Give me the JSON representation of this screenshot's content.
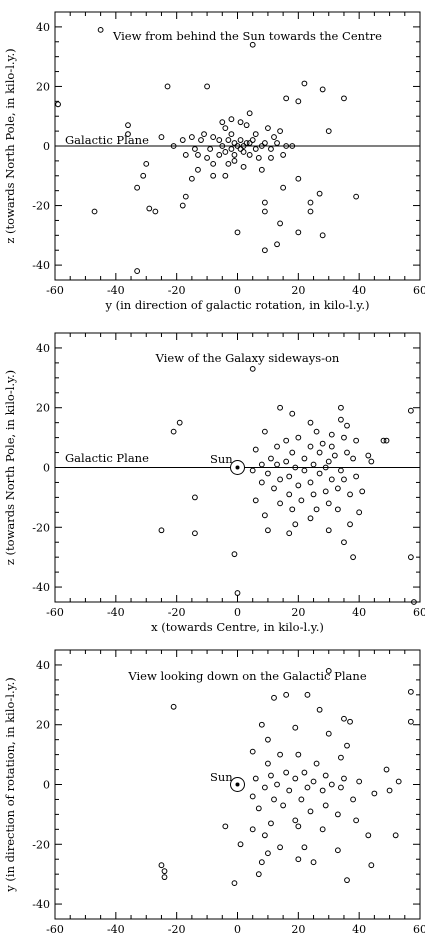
{
  "chart_data": [
    {
      "type": "scatter",
      "title": "View from behind the Sun towards the Centre",
      "xlabel": "y (in direction of galactic rotation, in kilo-l.y.)",
      "ylabel": "z (towards North Pole, in kilo-l.y.)",
      "xlim": [
        -60,
        60
      ],
      "ylim": [
        -45,
        45
      ],
      "xticks": [
        "-60",
        "-40",
        "-20",
        "0",
        "20",
        "40",
        "60"
      ],
      "yticks": [
        "-40",
        "-20",
        "0",
        "20",
        "40"
      ],
      "plane_label": "Galactic Plane",
      "points": [
        [
          -45,
          39
        ],
        [
          5,
          34
        ],
        [
          -59,
          14
        ],
        [
          -23,
          20
        ],
        [
          -10,
          20
        ],
        [
          22,
          21
        ],
        [
          28,
          19
        ],
        [
          16,
          16
        ],
        [
          20,
          15
        ],
        [
          35,
          16
        ],
        [
          -36,
          7
        ],
        [
          -36,
          4
        ],
        [
          30,
          5
        ],
        [
          4,
          11
        ],
        [
          -5,
          8
        ],
        [
          -2,
          9
        ],
        [
          1,
          8
        ],
        [
          3,
          7
        ],
        [
          10,
          6
        ],
        [
          -4,
          6
        ],
        [
          14,
          5
        ],
        [
          -11,
          4
        ],
        [
          -15,
          3
        ],
        [
          -8,
          3
        ],
        [
          -2,
          4
        ],
        [
          6,
          4
        ],
        [
          12,
          3
        ],
        [
          -25,
          3
        ],
        [
          -18,
          2
        ],
        [
          -12,
          2
        ],
        [
          -6,
          2
        ],
        [
          -3,
          2
        ],
        [
          -1,
          1
        ],
        [
          1,
          2
        ],
        [
          3,
          1
        ],
        [
          5,
          2
        ],
        [
          9,
          1
        ],
        [
          13,
          1
        ],
        [
          16,
          0
        ],
        [
          -21,
          0
        ],
        [
          -14,
          -1
        ],
        [
          -9,
          -1
        ],
        [
          -5,
          0
        ],
        [
          -2,
          -1
        ],
        [
          0,
          0
        ],
        [
          1,
          -1
        ],
        [
          2,
          0
        ],
        [
          4,
          1
        ],
        [
          6,
          -1
        ],
        [
          8,
          0
        ],
        [
          11,
          -1
        ],
        [
          18,
          0
        ],
        [
          -17,
          -3
        ],
        [
          -13,
          -3
        ],
        [
          -10,
          -4
        ],
        [
          -6,
          -3
        ],
        [
          -4,
          -2
        ],
        [
          -1,
          -3
        ],
        [
          2,
          -2
        ],
        [
          4,
          -3
        ],
        [
          7,
          -4
        ],
        [
          11,
          -4
        ],
        [
          15,
          -3
        ],
        [
          -30,
          -6
        ],
        [
          -8,
          -6
        ],
        [
          -3,
          -6
        ],
        [
          -1,
          -5
        ],
        [
          2,
          -7
        ],
        [
          8,
          -8
        ],
        [
          -13,
          -8
        ],
        [
          -8,
          -10
        ],
        [
          -4,
          -10
        ],
        [
          -31,
          -10
        ],
        [
          -15,
          -11
        ],
        [
          -17,
          -17
        ],
        [
          -33,
          -14
        ],
        [
          20,
          -11
        ],
        [
          15,
          -14
        ],
        [
          39,
          -17
        ],
        [
          27,
          -16
        ],
        [
          24,
          -19
        ],
        [
          -29,
          -21
        ],
        [
          -18,
          -20
        ],
        [
          -47,
          -22
        ],
        [
          -27,
          -22
        ],
        [
          9,
          -19
        ],
        [
          9,
          -22
        ],
        [
          24,
          -22
        ],
        [
          14,
          -26
        ],
        [
          0,
          -29
        ],
        [
          20,
          -29
        ],
        [
          28,
          -30
        ],
        [
          13,
          -33
        ],
        [
          9,
          -35
        ],
        [
          -33,
          -42
        ]
      ]
    },
    {
      "type": "scatter",
      "title": "View of the Galaxy sideways-on",
      "xlabel": "x (towards Centre, in kilo-l.y.)",
      "ylabel": "z (towards North Pole, in kilo-l.y.)",
      "xlim": [
        -60,
        60
      ],
      "ylim": [
        -45,
        45
      ],
      "xticks": [
        "-60",
        "-40",
        "-20",
        "0",
        "20",
        "40",
        "60"
      ],
      "yticks": [
        "-40",
        "-20",
        "0",
        "20",
        "40"
      ],
      "plane_label": "Galactic Plane",
      "sun_label": "Sun",
      "points": [
        [
          5,
          33
        ],
        [
          -19,
          15
        ],
        [
          -21,
          12
        ],
        [
          18,
          18
        ],
        [
          14,
          20
        ],
        [
          34,
          20
        ],
        [
          57,
          19
        ],
        [
          34,
          16
        ],
        [
          24,
          15
        ],
        [
          36,
          14
        ],
        [
          9,
          12
        ],
        [
          26,
          12
        ],
        [
          31,
          11
        ],
        [
          20,
          10
        ],
        [
          35,
          10
        ],
        [
          39,
          9
        ],
        [
          48,
          9
        ],
        [
          49,
          9
        ],
        [
          16,
          9
        ],
        [
          28,
          8
        ],
        [
          24,
          7
        ],
        [
          13,
          7
        ],
        [
          31,
          7
        ],
        [
          6,
          6
        ],
        [
          18,
          5
        ],
        [
          27,
          5
        ],
        [
          36,
          5
        ],
        [
          43,
          4
        ],
        [
          32,
          4
        ],
        [
          22,
          3
        ],
        [
          11,
          3
        ],
        [
          38,
          3
        ],
        [
          44,
          2
        ],
        [
          16,
          2
        ],
        [
          30,
          2
        ],
        [
          25,
          1
        ],
        [
          8,
          1
        ],
        [
          13,
          1
        ],
        [
          19,
          0
        ],
        [
          29,
          0
        ],
        [
          34,
          -1
        ],
        [
          5,
          -1
        ],
        [
          22,
          -1
        ],
        [
          10,
          -2
        ],
        [
          27,
          -2
        ],
        [
          39,
          -3
        ],
        [
          17,
          -3
        ],
        [
          31,
          -4
        ],
        [
          14,
          -4
        ],
        [
          35,
          -4
        ],
        [
          24,
          -5
        ],
        [
          8,
          -5
        ],
        [
          20,
          -6
        ],
        [
          33,
          -7
        ],
        [
          12,
          -7
        ],
        [
          29,
          -8
        ],
        [
          41,
          -8
        ],
        [
          17,
          -9
        ],
        [
          25,
          -9
        ],
        [
          37,
          -9
        ],
        [
          -14,
          -10
        ],
        [
          6,
          -11
        ],
        [
          21,
          -11
        ],
        [
          30,
          -12
        ],
        [
          14,
          -12
        ],
        [
          33,
          -14
        ],
        [
          40,
          -15
        ],
        [
          18,
          -14
        ],
        [
          26,
          -14
        ],
        [
          9,
          -16
        ],
        [
          24,
          -17
        ],
        [
          37,
          -19
        ],
        [
          19,
          -19
        ],
        [
          10,
          -21
        ],
        [
          30,
          -21
        ],
        [
          -25,
          -21
        ],
        [
          -14,
          -22
        ],
        [
          17,
          -22
        ],
        [
          35,
          -25
        ],
        [
          -1,
          -29
        ],
        [
          38,
          -30
        ],
        [
          57,
          -30
        ],
        [
          0,
          -42
        ],
        [
          58,
          -45
        ]
      ]
    },
    {
      "type": "scatter",
      "title": "View looking down on the Galactic Plane",
      "xlabel": "",
      "ylabel": "y (in direction of rotation, in kilo-l.y.)",
      "xlim": [
        -60,
        60
      ],
      "ylim": [
        -45,
        45
      ],
      "xticks": [
        "-60",
        "-40",
        "-20",
        "0",
        "20",
        "40",
        "60"
      ],
      "yticks": [
        "-40",
        "-20",
        "0",
        "20",
        "40"
      ],
      "sun_label": "Sun",
      "points": [
        [
          30,
          38
        ],
        [
          57,
          31
        ],
        [
          16,
          30
        ],
        [
          12,
          29
        ],
        [
          -21,
          26
        ],
        [
          23,
          30
        ],
        [
          27,
          25
        ],
        [
          35,
          22
        ],
        [
          37,
          21
        ],
        [
          57,
          21
        ],
        [
          8,
          20
        ],
        [
          19,
          19
        ],
        [
          10,
          15
        ],
        [
          30,
          17
        ],
        [
          36,
          13
        ],
        [
          5,
          11
        ],
        [
          14,
          10
        ],
        [
          20,
          10
        ],
        [
          34,
          9
        ],
        [
          10,
          7
        ],
        [
          26,
          7
        ],
        [
          49,
          5
        ],
        [
          16,
          4
        ],
        [
          22,
          4
        ],
        [
          29,
          3
        ],
        [
          11,
          3
        ],
        [
          35,
          2
        ],
        [
          6,
          2
        ],
        [
          19,
          2
        ],
        [
          25,
          1
        ],
        [
          31,
          0
        ],
        [
          40,
          1
        ],
        [
          53,
          1
        ],
        [
          13,
          0
        ],
        [
          23,
          -1
        ],
        [
          34,
          -1
        ],
        [
          9,
          -1
        ],
        [
          17,
          -2
        ],
        [
          28,
          -2
        ],
        [
          45,
          -3
        ],
        [
          50,
          -2
        ],
        [
          5,
          -4
        ],
        [
          12,
          -5
        ],
        [
          21,
          -5
        ],
        [
          38,
          -5
        ],
        [
          15,
          -7
        ],
        [
          29,
          -7
        ],
        [
          7,
          -8
        ],
        [
          24,
          -9
        ],
        [
          33,
          -10
        ],
        [
          19,
          -12
        ],
        [
          11,
          -13
        ],
        [
          39,
          -12
        ],
        [
          20,
          -14
        ],
        [
          -4,
          -14
        ],
        [
          5,
          -15
        ],
        [
          28,
          -15
        ],
        [
          9,
          -17
        ],
        [
          43,
          -17
        ],
        [
          52,
          -17
        ],
        [
          1,
          -20
        ],
        [
          14,
          -21
        ],
        [
          22,
          -21
        ],
        [
          33,
          -22
        ],
        [
          10,
          -23
        ],
        [
          20,
          -25
        ],
        [
          -25,
          -27
        ],
        [
          8,
          -26
        ],
        [
          25,
          -26
        ],
        [
          44,
          -27
        ],
        [
          -24,
          -29
        ],
        [
          -24,
          -31
        ],
        [
          7,
          -30
        ],
        [
          -1,
          -33
        ],
        [
          36,
          -32
        ]
      ]
    }
  ]
}
